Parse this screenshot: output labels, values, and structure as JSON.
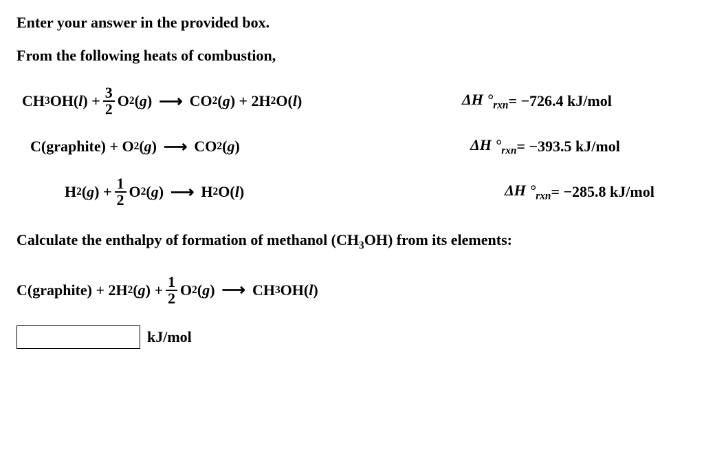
{
  "header": {
    "line1": "Enter your answer in the provided box.",
    "line2": "From the following heats of combustion,"
  },
  "equations": [
    {
      "indent": "indent1",
      "left_html": "CH<sub>3</sub>OH(<i>l</i>) + <span class='frac'><span class='num'>3</span><span class='den'>2</span></span>O<sub>2</sub>(<i>g</i> ) <span class='arrow'>&#10230;</span> CO<sub>2</sub>(<i>g</i> ) + 2H<sub>2</sub>O(<i>l</i>)",
      "dH_value": "= −726.4 kJ/mol"
    },
    {
      "indent": "indent2",
      "left_html": "C(graphite) + O<sub>2</sub>(<i>g</i> ) <span class='arrow'>&#10230;</span> CO<sub>2</sub>(<i>g</i> )",
      "dH_value": "= −393.5 kJ/mol"
    },
    {
      "indent": "indent3",
      "left_html": "H<sub>2</sub>(<i>g</i> ) + <span class='frac'><span class='num'>1</span><span class='den'>2</span></span>O<sub>2</sub>(<i>g</i> ) <span class='arrow'>&#10230;</span> H<sub>2</sub>O(<i>l</i>)",
      "dH_value": "= −285.8 kJ/mol"
    }
  ],
  "dH_label_html": "Δ<i>H</i> °<sub>rxn</sub> ",
  "question": {
    "prompt_html": "Calculate the enthalpy of formation of methanol (CH<sub>3</sub>OH) from its elements:",
    "target_eq_html": "C(graphite) + 2H<sub>2</sub>(<i>g</i> ) + <span class='frac'><span class='num'>1</span><span class='den'>2</span></span>O<sub>2</sub>(<i>g</i> ) <span class='arrow'>&#10230;</span> CH<sub>3</sub>OH(<i>l</i>)"
  },
  "answer": {
    "value": "",
    "unit": "kJ/mol"
  }
}
